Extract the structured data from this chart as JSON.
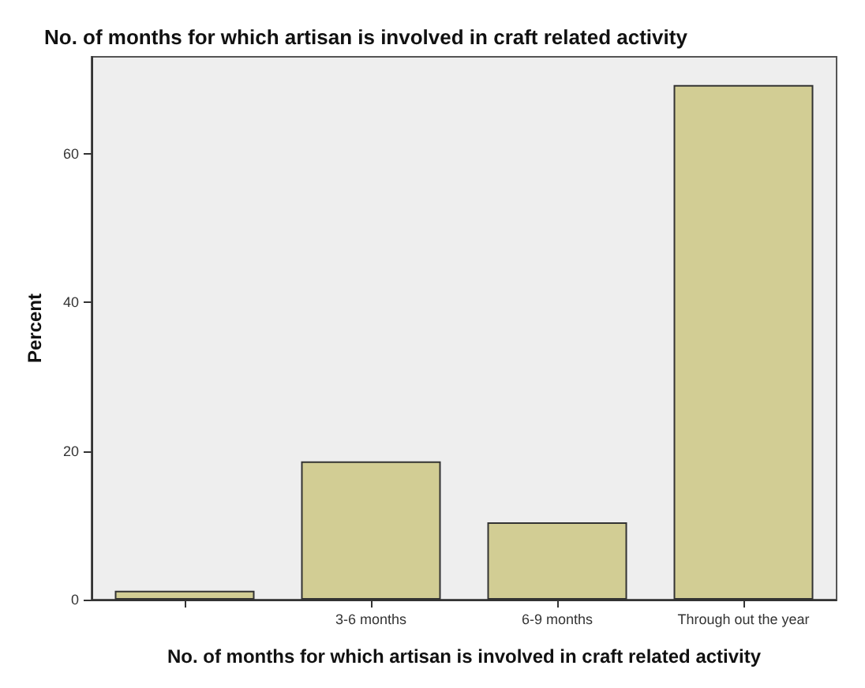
{
  "chart_data": {
    "type": "bar",
    "title": "No. of months for which artisan is involved in craft related activity",
    "xlabel": "No. of months for which artisan is involved in craft related activity",
    "ylabel": "Percent",
    "categories": [
      null,
      "3-6 months",
      "6-9 months",
      "Through out the year"
    ],
    "values": [
      1.2,
      18.6,
      10.4,
      69.2
    ],
    "color": "#d2cd94",
    "ylim": [
      0,
      73
    ],
    "yticks": [
      0,
      20,
      40,
      60
    ],
    "grid": false
  }
}
